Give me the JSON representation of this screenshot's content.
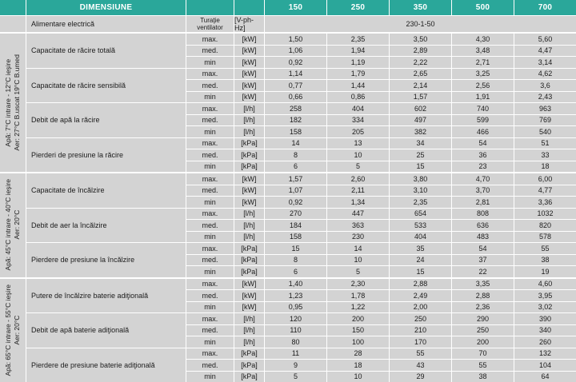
{
  "colors": {
    "teal": "#2aa79a",
    "cell_gray": "#d3d3d3",
    "text": "#1c1c1c"
  },
  "header": {
    "dimension_label": "DIMENSIUNE",
    "sizes": [
      "150",
      "250",
      "350",
      "500",
      "700"
    ]
  },
  "power": {
    "label": "Alimentare electrică",
    "fan_header": "Turaţie ventilator",
    "unit": "[V-ph-Hz]",
    "value": "230-1-50"
  },
  "speed_labels": [
    "max.",
    "med.",
    "min"
  ],
  "groups": [
    {
      "side": [
        "Apă: 7°C intrare - 12°C ieşire",
        "Aer: 27°C B.uscat 19°C B.umed"
      ],
      "sections": [
        {
          "label": "Capacitate de răcire totală",
          "unit": "[kW]",
          "rows": [
            [
              "1,50",
              "2,35",
              "3,50",
              "4,30",
              "5,60"
            ],
            [
              "1,06",
              "1,94",
              "2,89",
              "3,48",
              "4,47"
            ],
            [
              "0,92",
              "1,19",
              "2,22",
              "2,71",
              "3,14"
            ]
          ]
        },
        {
          "label": "Capacitate de răcire sensibilă",
          "unit": "[kW]",
          "rows": [
            [
              "1,14",
              "1,79",
              "2,65",
              "3,25",
              "4,62"
            ],
            [
              "0,77",
              "1,44",
              "2,14",
              "2,56",
              "3,6"
            ],
            [
              "0,66",
              "0,86",
              "1,57",
              "1,91",
              "2,43"
            ]
          ]
        },
        {
          "label": "Debit de apă la răcire",
          "unit": "[l/h]",
          "rows": [
            [
              "258",
              "404",
              "602",
              "740",
              "963"
            ],
            [
              "182",
              "334",
              "497",
              "599",
              "769"
            ],
            [
              "158",
              "205",
              "382",
              "466",
              "540"
            ]
          ]
        },
        {
          "label": "Pierderi de presiune la răcire",
          "unit": "[kPa]",
          "rows": [
            [
              "14",
              "13",
              "34",
              "54",
              "51"
            ],
            [
              "8",
              "10",
              "25",
              "36",
              "33"
            ],
            [
              "6",
              "5",
              "15",
              "23",
              "18"
            ]
          ]
        }
      ]
    },
    {
      "side": [
        "Apă: 45°C intrare - 40°C ieşire",
        "Aer: 20°C"
      ],
      "sections": [
        {
          "label": "Capacitate de încălzire",
          "unit": "[kW]",
          "rows": [
            [
              "1,57",
              "2,60",
              "3,80",
              "4,70",
              "6,00"
            ],
            [
              "1,07",
              "2,11",
              "3,10",
              "3,70",
              "4,77"
            ],
            [
              "0,92",
              "1,34",
              "2,35",
              "2,81",
              "3,36"
            ]
          ]
        },
        {
          "label": "Debit de aer la încălzire",
          "unit": "[l/h]",
          "rows": [
            [
              "270",
              "447",
              "654",
              "808",
              "1032"
            ],
            [
              "184",
              "363",
              "533",
              "636",
              "820"
            ],
            [
              "158",
              "230",
              "404",
              "483",
              "578"
            ]
          ]
        },
        {
          "label": "Pierdere de presiune la încălzire",
          "unit": "[kPa]",
          "rows": [
            [
              "15",
              "14",
              "35",
              "54",
              "55"
            ],
            [
              "8",
              "10",
              "24",
              "37",
              "38"
            ],
            [
              "6",
              "5",
              "15",
              "22",
              "19"
            ]
          ]
        }
      ]
    },
    {
      "side": [
        "Apă: 65°C intrare - 55°C ieşire",
        "Aer: 20°C"
      ],
      "sections": [
        {
          "label": "Putere de încălzire baterie adiţională",
          "unit": "[kW]",
          "rows": [
            [
              "1,40",
              "2,30",
              "2,88",
              "3,35",
              "4,60"
            ],
            [
              "1,23",
              "1,78",
              "2,49",
              "2,88",
              "3,95"
            ],
            [
              "0,95",
              "1,22",
              "2,00",
              "2,36",
              "3,02"
            ]
          ]
        },
        {
          "label": "Debit de apă baterie adiţională",
          "unit": "[l/h]",
          "rows": [
            [
              "120",
              "200",
              "250",
              "290",
              "390"
            ],
            [
              "110",
              "150",
              "210",
              "250",
              "340"
            ],
            [
              "80",
              "100",
              "170",
              "200",
              "260"
            ]
          ]
        },
        {
          "label": "Pierdere de presiune baterie adiţională",
          "unit": "[kPa]",
          "rows": [
            [
              "11",
              "28",
              "55",
              "70",
              "132"
            ],
            [
              "9",
              "18",
              "43",
              "55",
              "104"
            ],
            [
              "5",
              "10",
              "29",
              "38",
              "64"
            ]
          ]
        }
      ]
    }
  ]
}
